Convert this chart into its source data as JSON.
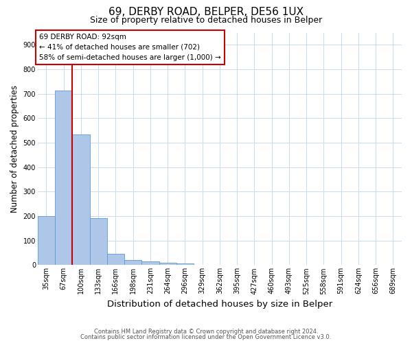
{
  "title1": "69, DERBY ROAD, BELPER, DE56 1UX",
  "title2": "Size of property relative to detached houses in Belper",
  "xlabel": "Distribution of detached houses by size in Belper",
  "ylabel": "Number of detached properties",
  "footnote1": "Contains HM Land Registry data © Crown copyright and database right 2024.",
  "footnote2": "Contains public sector information licensed under the Open Government Licence v3.0.",
  "annotation_line1": "69 DERBY ROAD: 92sqm",
  "annotation_line2": "← 41% of detached houses are smaller (702)",
  "annotation_line3": "58% of semi-detached houses are larger (1,000) →",
  "bar_labels": [
    "35sqm",
    "67sqm",
    "100sqm",
    "133sqm",
    "166sqm",
    "198sqm",
    "231sqm",
    "264sqm",
    "296sqm",
    "329sqm",
    "362sqm",
    "395sqm",
    "427sqm",
    "460sqm",
    "493sqm",
    "525sqm",
    "558sqm",
    "591sqm",
    "624sqm",
    "656sqm",
    "689sqm"
  ],
  "bar_values": [
    200,
    713,
    535,
    192,
    45,
    20,
    15,
    10,
    8,
    0,
    0,
    0,
    0,
    0,
    0,
    0,
    0,
    0,
    0,
    0,
    0
  ],
  "bar_color": "#aec6e8",
  "bar_edgecolor": "#5b9bd5",
  "ylim": [
    0,
    950
  ],
  "yticks": [
    0,
    100,
    200,
    300,
    400,
    500,
    600,
    700,
    800,
    900
  ],
  "red_color": "#cc0000",
  "grid_color": "#c8ddf0",
  "title1_fontsize": 11,
  "title2_fontsize": 9,
  "ylabel_fontsize": 8.5,
  "xlabel_fontsize": 9.5,
  "tick_fontsize": 7,
  "annot_fontsize": 7.5,
  "footnote_fontsize": 6
}
